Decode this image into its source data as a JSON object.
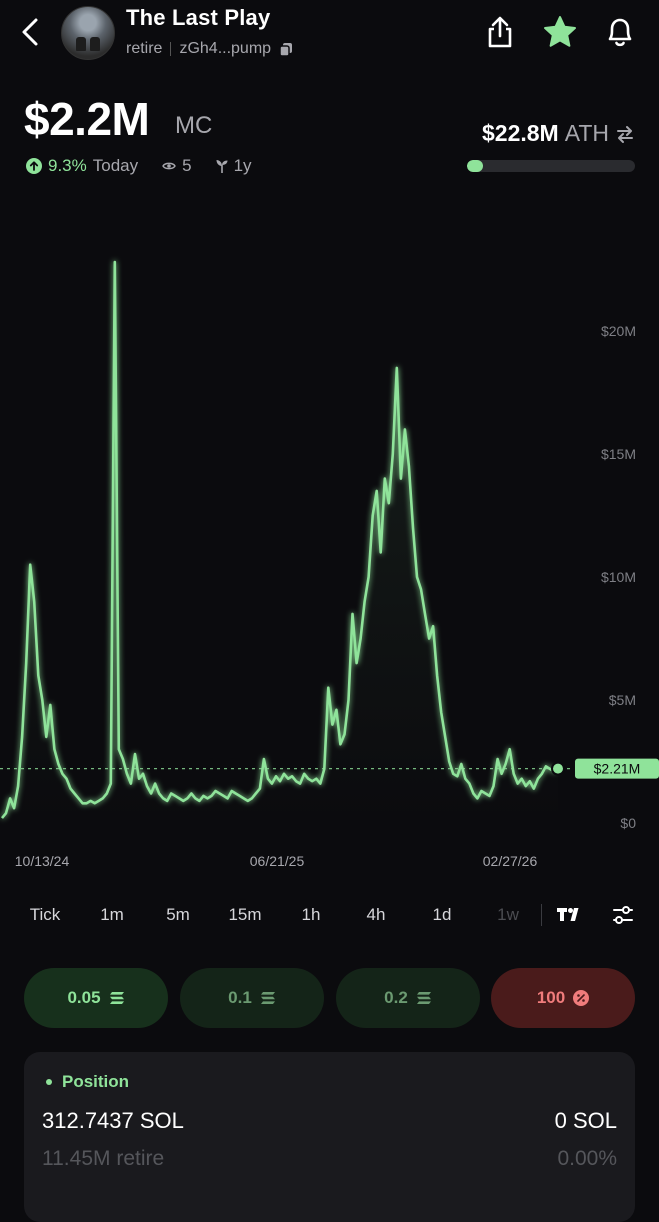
{
  "header": {
    "token_name": "The Last Play",
    "ticker": "retire",
    "address": "zGh4...pump",
    "icons": [
      "back-chevron-icon",
      "share-icon",
      "star-icon",
      "bell-icon",
      "copy-icon"
    ]
  },
  "market": {
    "mc_value": "$2.2M",
    "mc_unit": "MC",
    "change": "9.3%",
    "change_period": "Today",
    "watchers": "5",
    "age": "1y",
    "ath_value": "$22.8M",
    "ath_unit": "ATH",
    "ath_progress": 0.097
  },
  "chart_data": {
    "type": "line",
    "y_ticks": [
      "$20M",
      "$15M",
      "$10M",
      "$5M",
      "$0"
    ],
    "x_ticks": [
      "10/13/24",
      "06/21/25",
      "02/27/26"
    ],
    "current_label": "$2.21M",
    "ylim": [
      0,
      20
    ],
    "y_unit": "M",
    "series_color": "#8fe39a",
    "values": [
      0.2,
      0.4,
      1.0,
      0.6,
      1.5,
      3.5,
      6.5,
      10.5,
      9.0,
      6.0,
      5.0,
      3.5,
      4.8,
      3.0,
      2.4,
      2.0,
      1.8,
      1.4,
      1.2,
      1.0,
      0.8,
      0.8,
      0.9,
      0.8,
      0.9,
      1.0,
      1.2,
      1.6,
      22.8,
      3.0,
      2.6,
      2.0,
      1.6,
      2.8,
      1.8,
      2.0,
      1.5,
      1.2,
      1.6,
      1.2,
      1.0,
      0.9,
      1.2,
      1.1,
      1.0,
      0.9,
      1.0,
      1.2,
      1.0,
      0.9,
      1.1,
      1.0,
      1.1,
      1.3,
      1.2,
      1.1,
      1.0,
      1.3,
      1.2,
      1.1,
      1.0,
      0.9,
      1.0,
      1.2,
      1.4,
      2.6,
      1.8,
      1.6,
      1.9,
      1.7,
      2.0,
      1.8,
      1.9,
      1.7,
      1.6,
      2.0,
      1.8,
      1.7,
      1.8,
      1.6,
      2.2,
      5.5,
      4.0,
      4.6,
      3.2,
      3.6,
      5.0,
      8.5,
      6.5,
      7.5,
      9.0,
      10.0,
      12.5,
      13.5,
      11.0,
      14.0,
      13.0,
      15.0,
      18.5,
      14.0,
      16.0,
      14.5,
      12.0,
      10.0,
      9.5,
      8.5,
      7.5,
      8.0,
      6.0,
      4.5,
      3.5,
      2.5,
      2.0,
      1.9,
      2.4,
      1.8,
      1.6,
      1.2,
      1.0,
      1.3,
      1.2,
      1.1,
      1.5,
      2.6,
      2.0,
      2.4,
      3.0,
      2.0,
      1.6,
      1.8,
      1.5,
      1.7,
      1.4,
      1.8,
      2.0,
      2.3,
      2.2,
      2.1,
      2.21
    ]
  },
  "timeframes": [
    {
      "label": "Tick",
      "active": true
    },
    {
      "label": "1m",
      "active": true
    },
    {
      "label": "5m",
      "active": true
    },
    {
      "label": "15m",
      "active": true
    },
    {
      "label": "1h",
      "active": true
    },
    {
      "label": "4h",
      "active": true
    },
    {
      "label": "1d",
      "active": true
    },
    {
      "label": "1w",
      "active": false
    }
  ],
  "toolbar_icons": [
    "tradingview-icon",
    "settings-sliders-icon"
  ],
  "quick_buy": [
    {
      "label": "0.05",
      "icon": "solana-icon"
    },
    {
      "label": "0.1",
      "icon": "solana-icon"
    },
    {
      "label": "0.2",
      "icon": "solana-icon"
    },
    {
      "label": "100",
      "icon": "percent-icon"
    }
  ],
  "position": {
    "title": "Position",
    "sol_amount": "312.7437 SOL",
    "token_amount": "11.45M retire",
    "pnl_sol": "0 SOL",
    "pnl_pct": "0.00%"
  }
}
